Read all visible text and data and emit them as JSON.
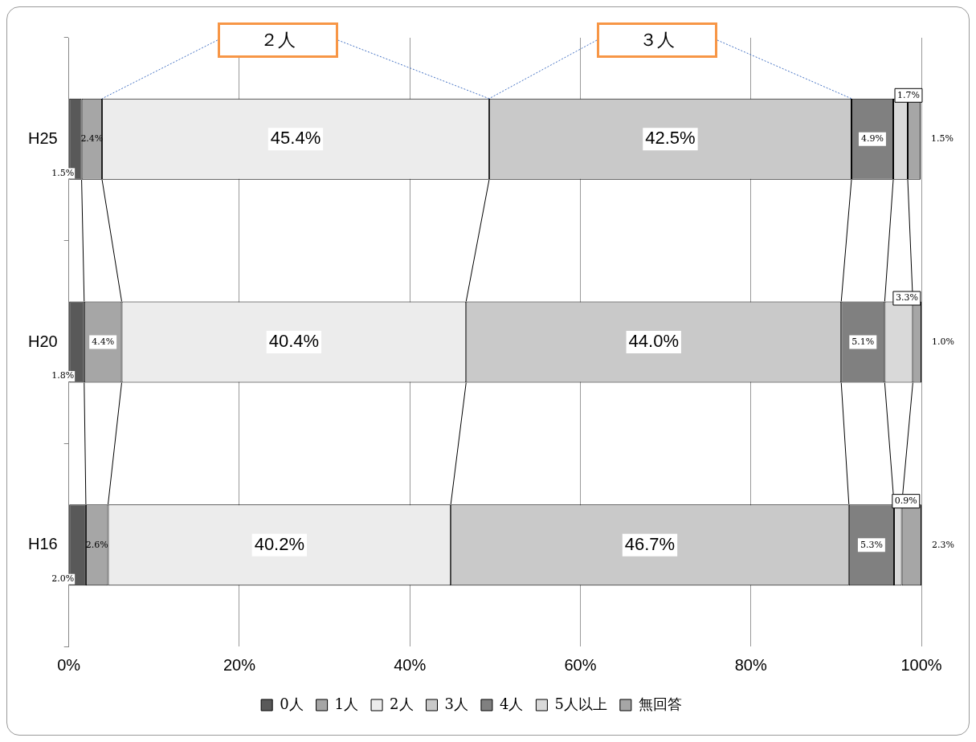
{
  "chart_data": {
    "type": "bar",
    "orientation": "horizontal",
    "stacked": true,
    "categories": [
      "H25",
      "H20",
      "H16"
    ],
    "series": [
      {
        "name": "0人",
        "color": "#595959",
        "values": [
          1.5,
          1.8,
          2.0
        ],
        "value_labels": [
          "1.5%",
          "1.8%",
          "2.0%"
        ]
      },
      {
        "name": "1人",
        "color": "#a6a6a6",
        "values": [
          2.4,
          4.4,
          2.6
        ],
        "value_labels": [
          "2.4%",
          "4.4%",
          "2.6%"
        ]
      },
      {
        "name": "2人",
        "color": "#ececec",
        "values": [
          45.4,
          40.4,
          40.2
        ],
        "value_labels": [
          "45.4%",
          "40.4%",
          "40.2%"
        ]
      },
      {
        "name": "3人",
        "color": "#c9c9c9",
        "values": [
          42.5,
          44.0,
          46.7
        ],
        "value_labels": [
          "42.5%",
          "44.0%",
          "46.7%"
        ]
      },
      {
        "name": "4人",
        "color": "#808080",
        "values": [
          4.9,
          5.1,
          5.3
        ],
        "value_labels": [
          "4.9%",
          "5.1%",
          "5.3%"
        ]
      },
      {
        "name": "5人以上",
        "color": "#d9d9d9",
        "values": [
          1.7,
          3.3,
          0.9
        ],
        "value_labels": [
          "1.7%",
          "3.3%",
          "0.9%"
        ]
      },
      {
        "name": "無回答",
        "color": "#a6a6a6",
        "values": [
          1.5,
          1.0,
          2.3
        ],
        "value_labels": [
          "1.5%",
          "1.0%",
          "2.3%"
        ]
      }
    ],
    "xlim": [
      0,
      100
    ],
    "xticks": [
      {
        "value": 0,
        "label": "0%"
      },
      {
        "value": 20,
        "label": "20%"
      },
      {
        "value": 40,
        "label": "40%"
      },
      {
        "value": 60,
        "label": "60%"
      },
      {
        "value": 80,
        "label": "80%"
      },
      {
        "value": 100,
        "label": "100%"
      }
    ],
    "annotations": [
      "２人",
      "３人"
    ],
    "grid": "x",
    "legend": "bottom"
  }
}
